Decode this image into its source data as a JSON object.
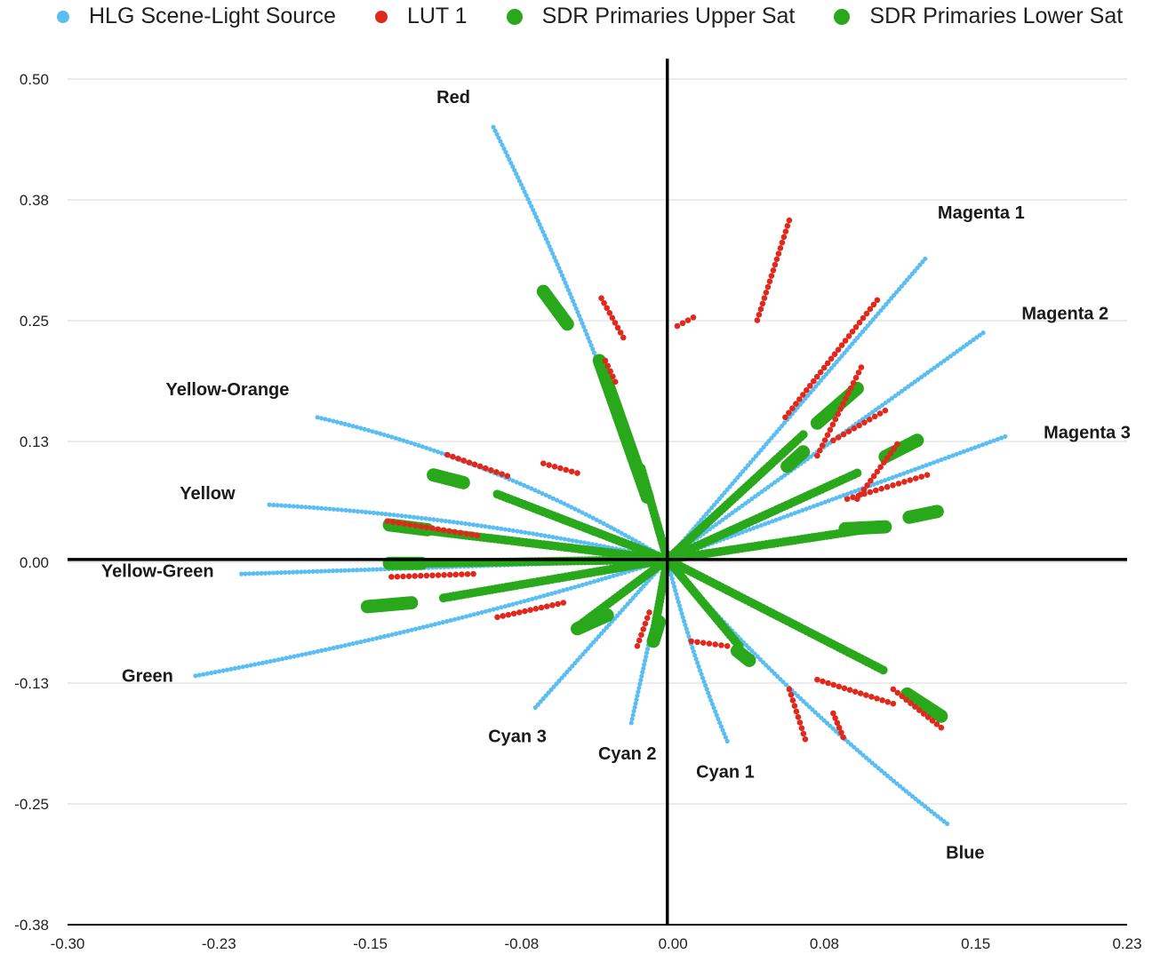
{
  "colors": {
    "hlg": "#5BBEF2",
    "lut": "#E0291C",
    "sdr_upper": "#29A81B",
    "sdr_lower": "#29A81B",
    "grid": "#d9d9d9",
    "axis": "#000000"
  },
  "chart_data": {
    "type": "scatter",
    "title": "",
    "xlabel": "",
    "ylabel": "",
    "xlim": [
      -0.3,
      0.23
    ],
    "ylim": [
      -0.38,
      0.5
    ],
    "x_ticks": [
      "-0.30",
      "-0.23",
      "-0.15",
      "-0.08",
      "0.00",
      "0.08",
      "0.15",
      "0.23"
    ],
    "y_ticks": [
      "0.50",
      "0.38",
      "0.25",
      "0.13",
      "0.00",
      "-0.13",
      "-0.25",
      "-0.38"
    ],
    "grid": "horizontal",
    "legend_position": "top",
    "legend": [
      {
        "label": "HLG Scene-Light Source",
        "color_key": "hlg"
      },
      {
        "label": "LUT 1",
        "color_key": "lut"
      },
      {
        "label": "SDR Primaries Upper Sat",
        "color_key": "sdr_upper"
      },
      {
        "label": "SDR Primaries Lower Sat",
        "color_key": "sdr_lower"
      }
    ],
    "hue_labels": [
      {
        "text": "Red",
        "x": -0.107,
        "y": 0.475
      },
      {
        "text": "Magenta 1",
        "x": 0.157,
        "y": 0.355
      },
      {
        "text": "Magenta 2",
        "x": 0.199,
        "y": 0.25
      },
      {
        "text": "Magenta 3",
        "x": 0.21,
        "y": 0.126
      },
      {
        "text": "Yellow-Orange",
        "x": -0.22,
        "y": 0.171
      },
      {
        "text": "Yellow",
        "x": -0.23,
        "y": 0.063
      },
      {
        "text": "Yellow-Green",
        "x": -0.255,
        "y": -0.018
      },
      {
        "text": "Green",
        "x": -0.26,
        "y": -0.127
      },
      {
        "text": "Cyan 3",
        "x": -0.075,
        "y": -0.19
      },
      {
        "text": "Cyan 2",
        "x": -0.02,
        "y": -0.208
      },
      {
        "text": "Cyan 1",
        "x": 0.029,
        "y": -0.227
      },
      {
        "text": "Blue",
        "x": 0.149,
        "y": -0.311
      }
    ],
    "series": [
      {
        "name": "HLG Scene-Light Source",
        "color_key": "hlg",
        "style": "dotted-arc",
        "rays": [
          {
            "hue": "Red",
            "end": [
              -0.087,
              0.45
            ],
            "bend": 0.04
          },
          {
            "hue": "Magenta 1",
            "end": [
              0.129,
              0.313
            ],
            "bend": 0.0
          },
          {
            "hue": "Magenta 2",
            "end": [
              0.158,
              0.236
            ],
            "bend": 0.0
          },
          {
            "hue": "Magenta 3",
            "end": [
              0.169,
              0.128
            ],
            "bend": 0.0
          },
          {
            "hue": "Yellow-Orange",
            "end": [
              -0.175,
              0.148
            ],
            "bend": 0.08
          },
          {
            "hue": "Yellow",
            "end": [
              -0.199,
              0.057
            ],
            "bend": 0.04
          },
          {
            "hue": "Yellow-Green",
            "end": [
              -0.213,
              -0.015
            ],
            "bend": 0.0
          },
          {
            "hue": "Green",
            "end": [
              -0.236,
              -0.121
            ],
            "bend": -0.03
          },
          {
            "hue": "Cyan 3",
            "end": [
              -0.066,
              -0.154
            ],
            "bend": 0.0
          },
          {
            "hue": "Cyan 2",
            "end": [
              -0.018,
              -0.17
            ],
            "bend": 0.0
          },
          {
            "hue": "Cyan 1",
            "end": [
              0.03,
              -0.189
            ],
            "bend": 0.04
          },
          {
            "hue": "Blue",
            "end": [
              0.14,
              -0.275
            ],
            "bend": 0.05
          }
        ]
      },
      {
        "name": "LUT 1",
        "color_key": "lut",
        "style": "points",
        "segments": [
          [
            [
              -0.033,
              0.272
            ],
            [
              -0.022,
              0.231
            ]
          ],
          [
            [
              -0.031,
              0.207
            ],
            [
              -0.026,
              0.185
            ]
          ],
          [
            [
              0.005,
              0.243
            ],
            [
              0.013,
              0.252
            ]
          ],
          [
            [
              0.045,
              0.249
            ],
            [
              0.061,
              0.353
            ]
          ],
          [
            [
              0.059,
              0.148
            ],
            [
              0.105,
              0.27
            ]
          ],
          [
            [
              0.075,
              0.108
            ],
            [
              0.097,
              0.2
            ]
          ],
          [
            [
              0.083,
              0.124
            ],
            [
              0.109,
              0.155
            ]
          ],
          [
            [
              0.09,
              0.063
            ],
            [
              0.13,
              0.088
            ]
          ],
          [
            [
              0.095,
              0.063
            ],
            [
              0.115,
              0.12
            ]
          ],
          [
            [
              -0.11,
              0.109
            ],
            [
              -0.08,
              0.087
            ]
          ],
          [
            [
              -0.14,
              0.04
            ],
            [
              -0.095,
              0.025
            ]
          ],
          [
            [
              -0.138,
              -0.018
            ],
            [
              -0.097,
              -0.015
            ]
          ],
          [
            [
              -0.085,
              -0.06
            ],
            [
              -0.052,
              -0.045
            ]
          ],
          [
            [
              -0.062,
              0.1
            ],
            [
              -0.045,
              0.09
            ]
          ],
          [
            [
              -0.015,
              -0.09
            ],
            [
              -0.009,
              -0.055
            ]
          ],
          [
            [
              0.012,
              -0.085
            ],
            [
              0.03,
              -0.09
            ]
          ],
          [
            [
              0.061,
              -0.135
            ],
            [
              0.069,
              -0.187
            ]
          ],
          [
            [
              0.075,
              -0.125
            ],
            [
              0.113,
              -0.15
            ]
          ],
          [
            [
              0.113,
              -0.135
            ],
            [
              0.137,
              -0.175
            ]
          ],
          [
            [
              0.083,
              -0.16
            ],
            [
              0.088,
              -0.185
            ]
          ]
        ]
      },
      {
        "name": "SDR Primaries Upper Sat",
        "color_key": "sdr_upper",
        "style": "thick-dashes",
        "segments": [
          [
            [
              -0.062,
              0.279
            ],
            [
              -0.05,
              0.245
            ]
          ],
          [
            [
              -0.034,
              0.207
            ],
            [
              -0.01,
              0.065
            ]
          ],
          [
            [
              0.075,
              0.142
            ],
            [
              0.095,
              0.178
            ]
          ],
          [
            [
              0.06,
              0.097
            ],
            [
              0.068,
              0.112
            ]
          ],
          [
            [
              0.109,
              0.107
            ],
            [
              0.125,
              0.124
            ]
          ],
          [
            [
              0.121,
              0.044
            ],
            [
              0.135,
              0.05
            ]
          ],
          [
            [
              0.089,
              0.032
            ],
            [
              0.109,
              0.034
            ]
          ],
          [
            [
              -0.117,
              0.088
            ],
            [
              -0.102,
              0.08
            ]
          ],
          [
            [
              -0.139,
              0.036
            ],
            [
              -0.12,
              0.031
            ]
          ],
          [
            [
              -0.139,
              -0.004
            ],
            [
              -0.123,
              -0.004
            ]
          ],
          [
            [
              -0.15,
              -0.049
            ],
            [
              -0.128,
              -0.045
            ]
          ],
          [
            [
              -0.045,
              -0.072
            ],
            [
              -0.03,
              -0.058
            ]
          ],
          [
            [
              -0.007,
              -0.085
            ],
            [
              -0.004,
              -0.065
            ]
          ],
          [
            [
              0.035,
              -0.095
            ],
            [
              0.041,
              -0.105
            ]
          ],
          [
            [
              0.12,
              -0.14
            ],
            [
              0.137,
              -0.163
            ]
          ]
        ]
      },
      {
        "name": "SDR Primaries Lower Sat",
        "color_key": "sdr_lower",
        "style": "thick-dotted",
        "rays": [
          {
            "end": [
              -0.013,
              0.095
            ],
            "bend": 0.0
          },
          {
            "end": [
              0.068,
              0.13
            ],
            "bend": 0.0
          },
          {
            "end": [
              0.095,
              0.09
            ],
            "bend": 0.0
          },
          {
            "end": [
              0.108,
              0.034
            ],
            "bend": 0.0
          },
          {
            "end": [
              -0.085,
              0.068
            ],
            "bend": 0.0
          },
          {
            "end": [
              -0.12,
              0.03
            ],
            "bend": 0.0
          },
          {
            "end": [
              -0.123,
              -0.004
            ],
            "bend": 0.0
          },
          {
            "end": [
              -0.112,
              -0.04
            ],
            "bend": 0.0
          },
          {
            "end": [
              -0.045,
              -0.07
            ],
            "bend": 0.0
          },
          {
            "end": [
              -0.007,
              -0.08
            ],
            "bend": 0.0
          },
          {
            "end": [
              0.036,
              -0.09
            ],
            "bend": 0.0
          },
          {
            "end": [
              0.108,
              -0.115
            ],
            "bend": 0.0
          }
        ]
      }
    ]
  }
}
